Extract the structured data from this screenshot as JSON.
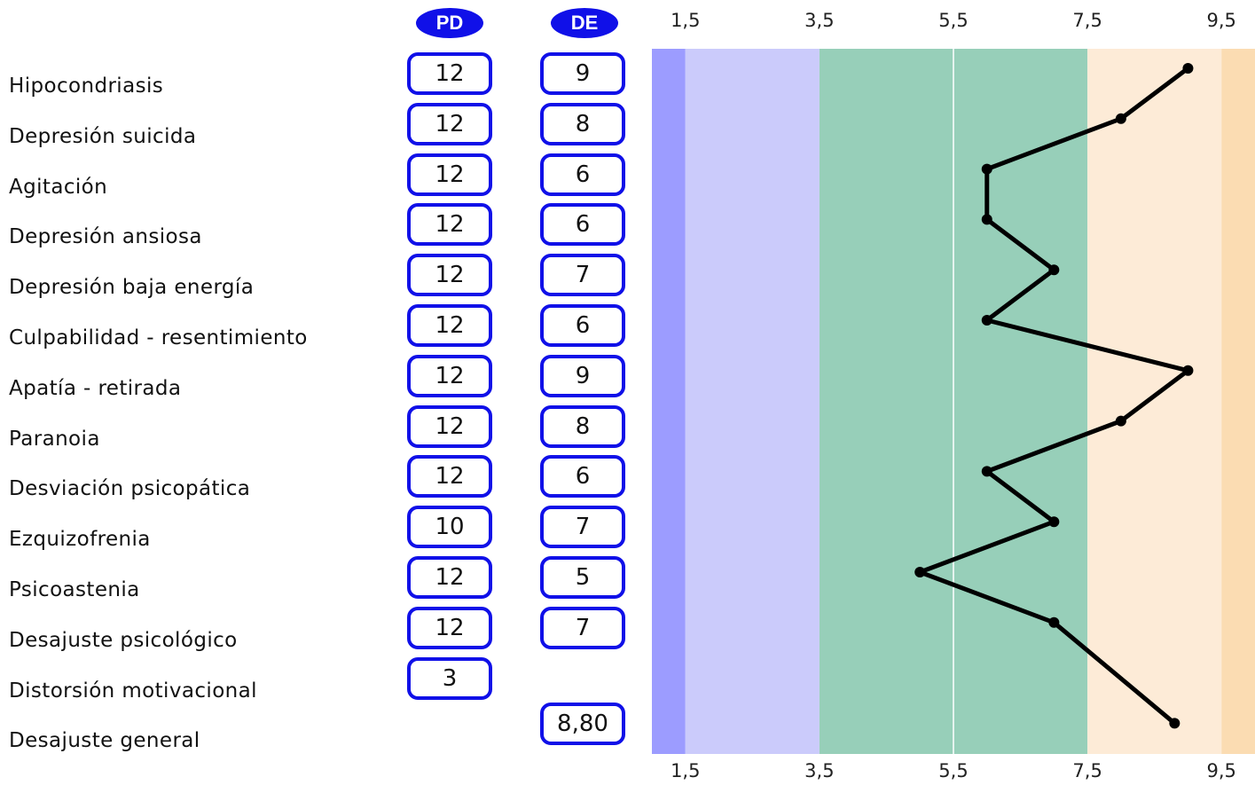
{
  "headers": {
    "pd": "PD",
    "de": "DE"
  },
  "rows": [
    {
      "label": "Hipocondriasis",
      "pd": "12",
      "de": "9"
    },
    {
      "label": "Depresión suicida",
      "pd": "12",
      "de": "8"
    },
    {
      "label": "Agitación",
      "pd": "12",
      "de": "6"
    },
    {
      "label": "Depresión ansiosa",
      "pd": "12",
      "de": "6"
    },
    {
      "label": "Depresión baja energía",
      "pd": "12",
      "de": "7"
    },
    {
      "label": "Culpabilidad - resentimiento",
      "pd": "12",
      "de": "6"
    },
    {
      "label": "Apatía - retirada",
      "pd": "12",
      "de": "9"
    },
    {
      "label": "Paranoia",
      "pd": "12",
      "de": "8"
    },
    {
      "label": "Desviación psicopática",
      "pd": "12",
      "de": "6"
    },
    {
      "label": "Ezquizofrenia",
      "pd": "10",
      "de": "7"
    },
    {
      "label": "Psicoastenia",
      "pd": "12",
      "de": "5"
    },
    {
      "label": "Desajuste psicológico",
      "pd": "12",
      "de": "7"
    },
    {
      "label": "Distorsión motivacional",
      "pd": "3",
      "de": ""
    },
    {
      "label": "Desajuste general",
      "pd": "",
      "de": "8,80"
    }
  ],
  "chart_data": {
    "type": "line",
    "x_axis_ticks": [
      "1,5",
      "3,5",
      "5,5",
      "7,5",
      "9,5"
    ],
    "x_tick_values": [
      1.5,
      3.5,
      5.5,
      7.5,
      9.5
    ],
    "xlim": [
      1,
      10
    ],
    "bands": [
      {
        "from": 1,
        "to": 1.5,
        "color": "#9c9cff"
      },
      {
        "from": 1.5,
        "to": 3.5,
        "color": "#cbcbfb"
      },
      {
        "from": 3.5,
        "to": 7.5,
        "color": "#97cfb9"
      },
      {
        "from": 7.5,
        "to": 9.5,
        "color": "#fdebd7"
      },
      {
        "from": 9.5,
        "to": 10,
        "color": "#fbdcb2"
      }
    ],
    "series": [
      {
        "values": [
          9,
          8,
          6,
          6,
          7,
          6,
          9,
          8,
          6,
          7,
          5,
          7,
          null,
          8.8
        ]
      }
    ],
    "line_color": "#000000",
    "grid": false
  }
}
